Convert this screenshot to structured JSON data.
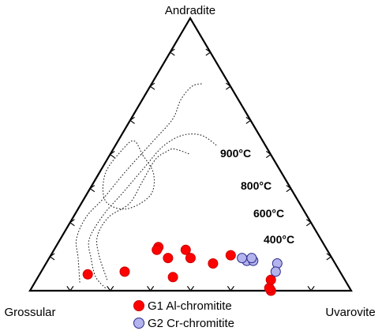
{
  "chart_data": {
    "type": "ternary-scatter",
    "vertices": {
      "top": "Andradite",
      "left": "Grossular",
      "right": "Uvarovite"
    },
    "isotherms": [
      {
        "label": "900°C",
        "points": [
          [
            0.4,
            0.5,
            0.1
          ],
          [
            0.4,
            0.55,
            0.05
          ],
          [
            0.45,
            0.52,
            0.03
          ],
          [
            0.55,
            0.43,
            0.02
          ],
          [
            0.6,
            0.33,
            0.07
          ],
          [
            0.55,
            0.3,
            0.15
          ],
          [
            0.45,
            0.35,
            0.2
          ],
          [
            0.4,
            0.43,
            0.17
          ],
          [
            0.4,
            0.5,
            0.1
          ]
        ]
      },
      {
        "label": "800°C",
        "points": [
          [
            0.74,
            0.04,
            0.22
          ],
          [
            0.72,
            0.13,
            0.15
          ],
          [
            0.69,
            0.2,
            0.11
          ],
          [
            0.62,
            0.27,
            0.11
          ],
          [
            0.53,
            0.32,
            0.15
          ],
          [
            0.45,
            0.4,
            0.15
          ],
          [
            0.37,
            0.48,
            0.15
          ],
          [
            0.32,
            0.51,
            0.17
          ],
          [
            0.29,
            0.52,
            0.19
          ],
          [
            0.25,
            0.5,
            0.25
          ]
        ]
      },
      {
        "label": "600°C",
        "points": [
          [
            0.76,
            0.01,
            0.23
          ],
          [
            0.77,
            0.05,
            0.18
          ],
          [
            0.75,
            0.12,
            0.13
          ],
          [
            0.72,
            0.19,
            0.09
          ],
          [
            0.63,
            0.28,
            0.09
          ],
          [
            0.53,
            0.36,
            0.11
          ],
          [
            0.42,
            0.45,
            0.13
          ],
          [
            0.32,
            0.53,
            0.15
          ],
          [
            0.24,
            0.57,
            0.19
          ],
          [
            0.18,
            0.57,
            0.25
          ],
          [
            0.15,
            0.53,
            0.32
          ]
        ]
      },
      {
        "label": "400°C",
        "points": [
          [
            0.83,
            0.03,
            0.14
          ],
          [
            0.79,
            0.12,
            0.09
          ],
          [
            0.76,
            0.19,
            0.05
          ],
          [
            0.69,
            0.27,
            0.04
          ],
          [
            0.6,
            0.34,
            0.06
          ],
          [
            0.48,
            0.44,
            0.08
          ],
          [
            0.34,
            0.55,
            0.11
          ],
          [
            0.24,
            0.63,
            0.13
          ],
          [
            0.18,
            0.7,
            0.12
          ],
          [
            0.12,
            0.75,
            0.13
          ],
          [
            0.08,
            0.76,
            0.16
          ]
        ]
      }
    ],
    "series": [
      {
        "name": "G1 Al-chromitite",
        "color": "#ff0000",
        "points": [
          [
            0.52,
            0.16,
            0.32
          ],
          [
            0.44,
            0.15,
            0.41
          ],
          [
            0.44,
            0.12,
            0.44
          ],
          [
            0.53,
            0.15,
            0.32
          ],
          [
            0.51,
            0.12,
            0.37
          ],
          [
            0.53,
            0.05,
            0.42
          ],
          [
            0.67,
            0.07,
            0.26
          ],
          [
            0.38,
            0.1,
            0.52
          ],
          [
            0.31,
            0.13,
            0.56
          ],
          [
            0.25,
            0.0,
            0.75
          ],
          [
            0.25,
            0.01,
            0.74
          ],
          [
            0.23,
            0.04,
            0.73
          ],
          [
            0.79,
            0.06,
            0.15
          ]
        ]
      },
      {
        "name": "G2 Cr-chromitite",
        "color": "#b3b3ee",
        "points": [
          [
            0.27,
            0.11,
            0.62
          ],
          [
            0.28,
            0.12,
            0.6
          ],
          [
            0.25,
            0.11,
            0.64
          ],
          [
            0.25,
            0.12,
            0.63
          ],
          [
            0.18,
            0.1,
            0.72
          ],
          [
            0.2,
            0.07,
            0.73
          ]
        ]
      }
    ],
    "legend_position": "bottom-center"
  }
}
